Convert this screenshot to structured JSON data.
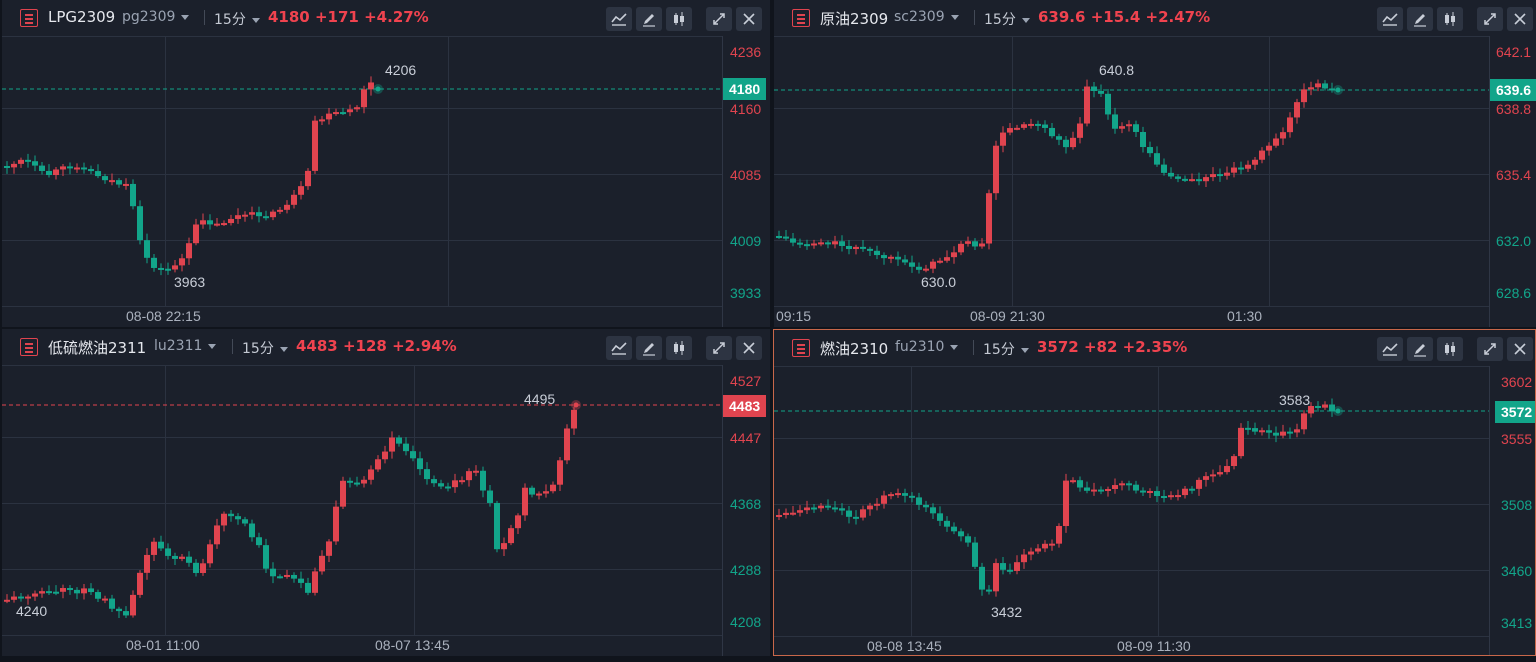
{
  "colors": {
    "up": "#e0444f",
    "down": "#12a58a",
    "grid": "#2b3240",
    "text": "#aab1bd",
    "panel": "#1b202b",
    "active_border": "#c8674a"
  },
  "icons": [
    "menu-icon",
    "line-chart-icon",
    "pencil-icon",
    "candlestick-icon",
    "expand-icon",
    "close-icon"
  ],
  "panels": [
    {
      "name": "LPG2309",
      "code": "pg2309",
      "period": "15分",
      "last": "4180",
      "change": "+171",
      "pct": "+4.27%",
      "y_ticks": [
        "4236",
        "4160",
        "4085",
        "4009",
        "3933"
      ],
      "x_ticks": [
        "08-08 22:15"
      ],
      "current_badge": "4180",
      "high_label": "4206",
      "low_label": "3963"
    },
    {
      "name": "原油2309",
      "code": "sc2309",
      "period": "15分",
      "last": "639.6",
      "change": "+15.4",
      "pct": "+2.47%",
      "y_ticks": [
        "642.1",
        "638.8",
        "635.4",
        "632.0",
        "628.6"
      ],
      "x_ticks": [
        "09:15",
        "08-09 21:30",
        "01:30"
      ],
      "current_badge": "639.6",
      "high_label": "640.8",
      "low_label": "630.0"
    },
    {
      "name": "低硫燃油2311",
      "code": "lu2311",
      "period": "15分",
      "last": "4483",
      "change": "+128",
      "pct": "+2.94%",
      "y_ticks": [
        "4527",
        "4447",
        "4368",
        "4288",
        "4208"
      ],
      "x_ticks": [
        "08-01 11:00",
        "08-07 13:45"
      ],
      "current_badge": "4483",
      "high_label": "4495",
      "low_label": "4240"
    },
    {
      "name": "燃油2310",
      "code": "fu2310",
      "period": "15分",
      "last": "3572",
      "change": "+82",
      "pct": "+2.35%",
      "y_ticks": [
        "3602",
        "3555",
        "3508",
        "3460",
        "3413"
      ],
      "x_ticks": [
        "08-08 13:45",
        "08-09 11:30"
      ],
      "current_badge": "3572",
      "high_label": "3583",
      "low_label": "3432"
    }
  ]
}
